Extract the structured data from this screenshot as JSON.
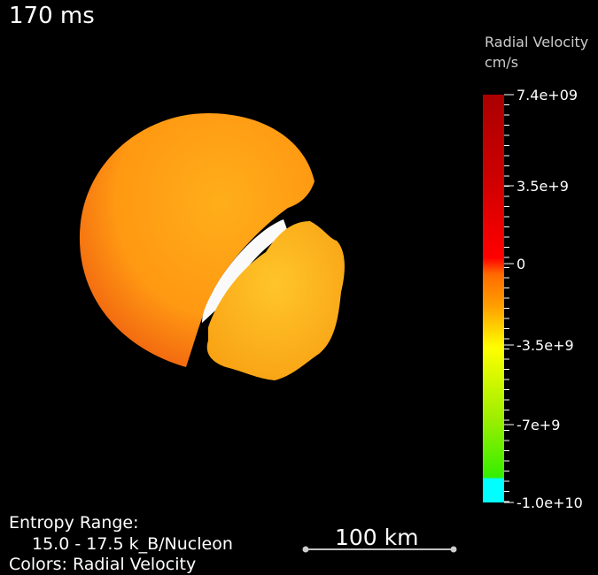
{
  "time": "170 ms",
  "colorbar": {
    "title": "Radial Velocity",
    "unit": "cm/s",
    "ticks": [
      "7.4e+09",
      "3.5e+9",
      "0",
      "-3.5e+9",
      "-7e+9",
      "-1.0e+10"
    ]
  },
  "info": {
    "line1": "Entropy Range:",
    "line2": "15.0 - 17.5 k_B/Nucleon",
    "line3": "Colors: Radial Velocity"
  },
  "scale_bar": "100 km"
}
